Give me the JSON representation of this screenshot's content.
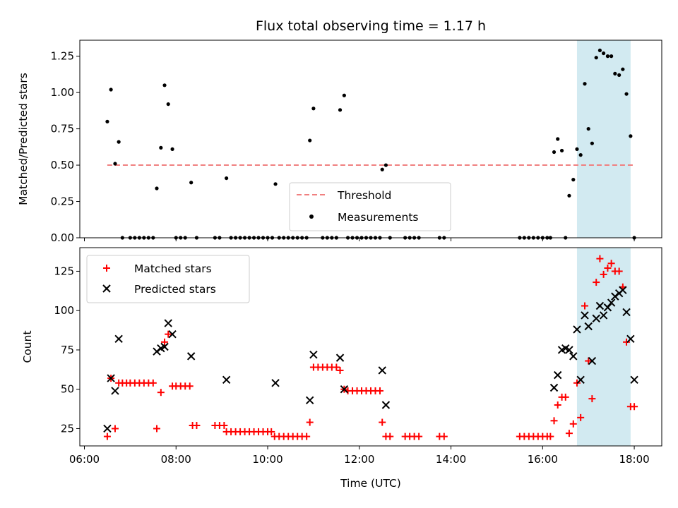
{
  "chart_data": {
    "type": "scatter",
    "title": "Flux total observing time = 1.17 h",
    "xlabel": "Time (UTC)",
    "x_ticks": [
      "06:00",
      "08:00",
      "10:00",
      "12:00",
      "14:00",
      "16:00",
      "18:00"
    ],
    "x_range_hours": [
      5.9,
      18.6
    ],
    "highlight_band_hours": [
      16.75,
      17.92
    ],
    "highlight_color": "#add8e6",
    "top_panel": {
      "ylabel": "Matched/Predicted stars",
      "ylim": [
        0,
        1.36
      ],
      "y_ticks": [
        "0.00",
        "0.25",
        "0.50",
        "0.75",
        "1.00",
        "1.25"
      ],
      "legend_position": "lower-center",
      "threshold": {
        "name": "Threshold",
        "value": 0.5,
        "x_range_hours": [
          6.5,
          18.0
        ],
        "color": "#f08080"
      },
      "measurements": {
        "name": "Measurements",
        "color": "#000000",
        "points": [
          [
            6.5,
            0.8
          ],
          [
            6.58,
            1.02
          ],
          [
            6.67,
            0.51
          ],
          [
            6.75,
            0.66
          ],
          [
            6.83,
            0.0
          ],
          [
            7.0,
            0.0
          ],
          [
            7.1,
            0.0
          ],
          [
            7.2,
            0.0
          ],
          [
            7.3,
            0.0
          ],
          [
            7.4,
            0.0
          ],
          [
            7.5,
            0.0
          ],
          [
            7.58,
            0.34
          ],
          [
            7.67,
            0.62
          ],
          [
            7.75,
            1.05
          ],
          [
            7.83,
            0.92
          ],
          [
            7.92,
            0.61
          ],
          [
            8.0,
            0.0
          ],
          [
            8.1,
            0.0
          ],
          [
            8.2,
            0.0
          ],
          [
            8.33,
            0.38
          ],
          [
            8.45,
            0.0
          ],
          [
            8.85,
            0.0
          ],
          [
            8.95,
            0.0
          ],
          [
            9.1,
            0.41
          ],
          [
            9.2,
            0.0
          ],
          [
            9.3,
            0.0
          ],
          [
            9.4,
            0.0
          ],
          [
            9.5,
            0.0
          ],
          [
            9.6,
            0.0
          ],
          [
            9.7,
            0.0
          ],
          [
            9.8,
            0.0
          ],
          [
            9.9,
            0.0
          ],
          [
            10.0,
            0.0
          ],
          [
            10.1,
            0.0
          ],
          [
            10.17,
            0.37
          ],
          [
            10.25,
            0.0
          ],
          [
            10.35,
            0.0
          ],
          [
            10.45,
            0.0
          ],
          [
            10.55,
            0.0
          ],
          [
            10.65,
            0.0
          ],
          [
            10.75,
            0.0
          ],
          [
            10.85,
            0.0
          ],
          [
            10.92,
            0.67
          ],
          [
            11.0,
            0.89
          ],
          [
            11.2,
            0.0
          ],
          [
            11.3,
            0.0
          ],
          [
            11.4,
            0.0
          ],
          [
            11.5,
            0.0
          ],
          [
            11.58,
            0.88
          ],
          [
            11.67,
            0.98
          ],
          [
            11.75,
            0.0
          ],
          [
            11.85,
            0.0
          ],
          [
            11.95,
            0.0
          ],
          [
            12.05,
            0.0
          ],
          [
            12.15,
            0.0
          ],
          [
            12.25,
            0.0
          ],
          [
            12.35,
            0.0
          ],
          [
            12.45,
            0.0
          ],
          [
            12.5,
            0.47
          ],
          [
            12.58,
            0.5
          ],
          [
            12.67,
            0.0
          ],
          [
            13.0,
            0.0
          ],
          [
            13.1,
            0.0
          ],
          [
            13.2,
            0.0
          ],
          [
            13.3,
            0.0
          ],
          [
            13.75,
            0.0
          ],
          [
            13.85,
            0.0
          ],
          [
            15.5,
            0.0
          ],
          [
            15.6,
            0.0
          ],
          [
            15.7,
            0.0
          ],
          [
            15.8,
            0.0
          ],
          [
            15.9,
            0.0
          ],
          [
            16.0,
            0.0
          ],
          [
            16.1,
            0.0
          ],
          [
            16.17,
            0.0
          ],
          [
            16.25,
            0.59
          ],
          [
            16.33,
            0.68
          ],
          [
            16.42,
            0.6
          ],
          [
            16.5,
            0.0
          ],
          [
            16.58,
            0.29
          ],
          [
            16.67,
            0.4
          ],
          [
            16.75,
            0.61
          ],
          [
            16.83,
            0.57
          ],
          [
            16.92,
            1.06
          ],
          [
            17.0,
            0.75
          ],
          [
            17.08,
            0.65
          ],
          [
            17.17,
            1.24
          ],
          [
            17.25,
            1.29
          ],
          [
            17.33,
            1.27
          ],
          [
            17.42,
            1.25
          ],
          [
            17.5,
            1.25
          ],
          [
            17.58,
            1.13
          ],
          [
            17.67,
            1.12
          ],
          [
            17.75,
            1.16
          ],
          [
            17.83,
            0.99
          ],
          [
            17.92,
            0.7
          ],
          [
            18.0,
            0.0
          ]
        ]
      }
    },
    "bottom_panel": {
      "ylabel": "Count",
      "ylim": [
        14,
        140
      ],
      "y_ticks": [
        "25",
        "50",
        "75",
        "100",
        "125"
      ],
      "legend_position": "upper-left",
      "series": [
        {
          "name": "Matched stars",
          "marker": "plus",
          "color": "#ff0000",
          "points": [
            [
              6.5,
              20
            ],
            [
              6.58,
              57
            ],
            [
              6.67,
              25
            ],
            [
              6.75,
              54
            ],
            [
              6.83,
              54
            ],
            [
              6.92,
              54
            ],
            [
              7.0,
              54
            ],
            [
              7.1,
              54
            ],
            [
              7.2,
              54
            ],
            [
              7.3,
              54
            ],
            [
              7.4,
              54
            ],
            [
              7.5,
              54
            ],
            [
              7.58,
              25
            ],
            [
              7.67,
              48
            ],
            [
              7.75,
              80
            ],
            [
              7.83,
              85
            ],
            [
              7.92,
              52
            ],
            [
              8.0,
              52
            ],
            [
              8.1,
              52
            ],
            [
              8.2,
              52
            ],
            [
              8.3,
              52
            ],
            [
              8.36,
              27
            ],
            [
              8.45,
              27
            ],
            [
              8.85,
              27
            ],
            [
              8.95,
              27
            ],
            [
              9.05,
              27
            ],
            [
              9.1,
              23
            ],
            [
              9.2,
              23
            ],
            [
              9.3,
              23
            ],
            [
              9.4,
              23
            ],
            [
              9.5,
              23
            ],
            [
              9.6,
              23
            ],
            [
              9.7,
              23
            ],
            [
              9.8,
              23
            ],
            [
              9.9,
              23
            ],
            [
              10.0,
              23
            ],
            [
              10.08,
              23
            ],
            [
              10.15,
              20
            ],
            [
              10.25,
              20
            ],
            [
              10.35,
              20
            ],
            [
              10.45,
              20
            ],
            [
              10.55,
              20
            ],
            [
              10.65,
              20
            ],
            [
              10.75,
              20
            ],
            [
              10.85,
              20
            ],
            [
              10.92,
              29
            ],
            [
              11.0,
              64
            ],
            [
              11.1,
              64
            ],
            [
              11.2,
              64
            ],
            [
              11.3,
              64
            ],
            [
              11.4,
              64
            ],
            [
              11.5,
              64
            ],
            [
              11.58,
              62
            ],
            [
              11.67,
              50
            ],
            [
              11.75,
              49
            ],
            [
              11.85,
              49
            ],
            [
              11.95,
              49
            ],
            [
              12.05,
              49
            ],
            [
              12.15,
              49
            ],
            [
              12.25,
              49
            ],
            [
              12.35,
              49
            ],
            [
              12.45,
              49
            ],
            [
              12.5,
              29
            ],
            [
              12.58,
              20
            ],
            [
              12.67,
              20
            ],
            [
              13.0,
              20
            ],
            [
              13.1,
              20
            ],
            [
              13.2,
              20
            ],
            [
              13.3,
              20
            ],
            [
              13.75,
              20
            ],
            [
              13.85,
              20
            ],
            [
              15.5,
              20
            ],
            [
              15.6,
              20
            ],
            [
              15.7,
              20
            ],
            [
              15.8,
              20
            ],
            [
              15.9,
              20
            ],
            [
              16.0,
              20
            ],
            [
              16.1,
              20
            ],
            [
              16.17,
              20
            ],
            [
              16.25,
              30
            ],
            [
              16.33,
              40
            ],
            [
              16.42,
              45
            ],
            [
              16.5,
              45
            ],
            [
              16.58,
              22
            ],
            [
              16.67,
              28
            ],
            [
              16.75,
              54
            ],
            [
              16.83,
              32
            ],
            [
              16.92,
              103
            ],
            [
              17.0,
              68
            ],
            [
              17.08,
              44
            ],
            [
              17.17,
              118
            ],
            [
              17.25,
              133
            ],
            [
              17.33,
              123
            ],
            [
              17.42,
              127
            ],
            [
              17.5,
              130
            ],
            [
              17.58,
              125
            ],
            [
              17.67,
              125
            ],
            [
              17.75,
              115
            ],
            [
              17.83,
              80
            ],
            [
              17.92,
              39
            ],
            [
              18.0,
              39
            ]
          ]
        },
        {
          "name": "Predicted stars",
          "marker": "x",
          "color": "#000000",
          "points": [
            [
              6.5,
              25
            ],
            [
              6.58,
              57
            ],
            [
              6.67,
              49
            ],
            [
              6.75,
              82
            ],
            [
              7.58,
              74
            ],
            [
              7.67,
              76
            ],
            [
              7.75,
              77
            ],
            [
              7.83,
              92
            ],
            [
              7.92,
              85
            ],
            [
              8.33,
              71
            ],
            [
              9.1,
              56
            ],
            [
              10.17,
              54
            ],
            [
              10.92,
              43
            ],
            [
              11.0,
              72
            ],
            [
              11.58,
              70
            ],
            [
              11.67,
              50
            ],
            [
              12.5,
              62
            ],
            [
              12.58,
              40
            ],
            [
              16.25,
              51
            ],
            [
              16.33,
              59
            ],
            [
              16.42,
              75
            ],
            [
              16.5,
              76
            ],
            [
              16.58,
              75
            ],
            [
              16.67,
              71
            ],
            [
              16.75,
              88
            ],
            [
              16.83,
              56
            ],
            [
              16.92,
              97
            ],
            [
              17.0,
              90
            ],
            [
              17.08,
              68
            ],
            [
              17.17,
              95
            ],
            [
              17.25,
              103
            ],
            [
              17.33,
              97
            ],
            [
              17.42,
              102
            ],
            [
              17.5,
              105
            ],
            [
              17.58,
              109
            ],
            [
              17.67,
              111
            ],
            [
              17.75,
              113
            ],
            [
              17.83,
              99
            ],
            [
              17.92,
              82
            ],
            [
              18.0,
              56
            ]
          ]
        }
      ]
    }
  }
}
